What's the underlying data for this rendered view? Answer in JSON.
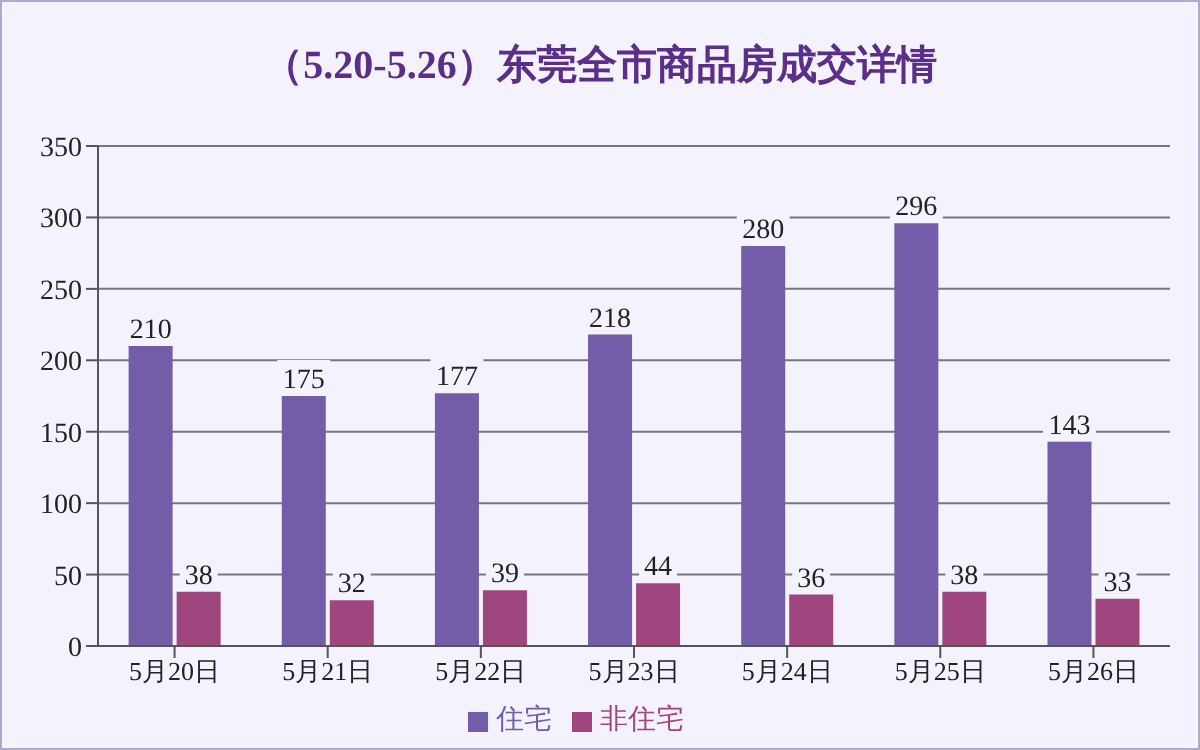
{
  "chart_data": {
    "type": "bar",
    "title": "（5.20-5.26）东莞全市商品房成交详情",
    "categories": [
      "5月20日",
      "5月21日",
      "5月22日",
      "5月23日",
      "5月24日",
      "5月25日",
      "5月26日"
    ],
    "series": [
      {
        "name": "住宅",
        "color": "#735ca8",
        "values": [
          210,
          175,
          177,
          218,
          280,
          296,
          143
        ]
      },
      {
        "name": "非住宅",
        "color": "#a0467e",
        "values": [
          38,
          32,
          39,
          44,
          36,
          38,
          33
        ]
      }
    ],
    "ylim": [
      0,
      350
    ],
    "yticks": [
      0,
      50,
      100,
      150,
      200,
      250,
      300,
      350
    ],
    "grid": "y",
    "legend": "bottom",
    "data_labels": true
  }
}
